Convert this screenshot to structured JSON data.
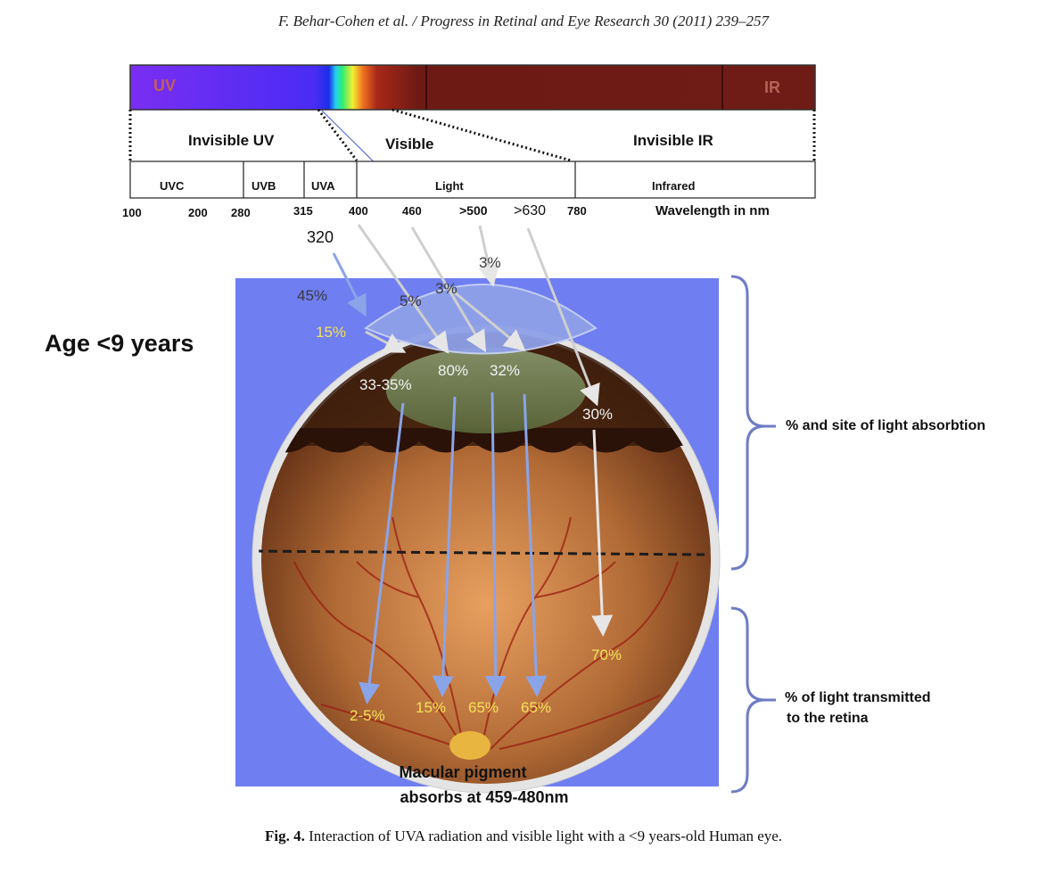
{
  "header": "F. Behar-Cohen et al. / Progress in Retinal and Eye Research 30 (2011) 239–257",
  "spectrum": {
    "uv_label": "UV",
    "ir_label": "IR"
  },
  "bands": {
    "invisible_uv": "Invisible UV",
    "visible": "Visible",
    "invisible_ir": "Invisible IR"
  },
  "subbands": {
    "uvc": "UVC",
    "uvb": "UVB",
    "uva": "UVA",
    "light": "Light",
    "infrared": "Infrared"
  },
  "wavelengths": [
    "100",
    "200",
    "280",
    "315",
    "400",
    "460",
    ">500",
    ">630",
    "780"
  ],
  "wavelength_unit": "Wavelength in nm",
  "age_label": "Age <9 years",
  "absorption": {
    "uva_320": "320",
    "p45": "45%",
    "p15_cornea": "15%",
    "p5": "5%",
    "p3_lens": "3%",
    "p3_top": "3%",
    "p33_35": "33-35%",
    "p80": "80%",
    "p32": "32%",
    "p30": "30%"
  },
  "transmission": {
    "p2_5": "2-5%",
    "p15": "15%",
    "p65a": "65%",
    "p65b": "65%",
    "p70": "70%"
  },
  "side_labels": {
    "absorption": "% and site of light absorbtion",
    "transmitted_line1": "% of light transmitted",
    "transmitted_line2": "to the retina"
  },
  "macular": {
    "line1": "Macular pigment",
    "line2": "absorbs at 459-480nm"
  },
  "caption": {
    "fig": "Fig. 4.",
    "text": " Interaction of UVA radiation and visible light with a <9 years-old Human eye."
  },
  "colors": {
    "panel_blue": "#6e7ef0",
    "uv_purple": "#6a2cf0",
    "ir_red": "#6e1a14",
    "label_yellow": "#f4e15a"
  }
}
